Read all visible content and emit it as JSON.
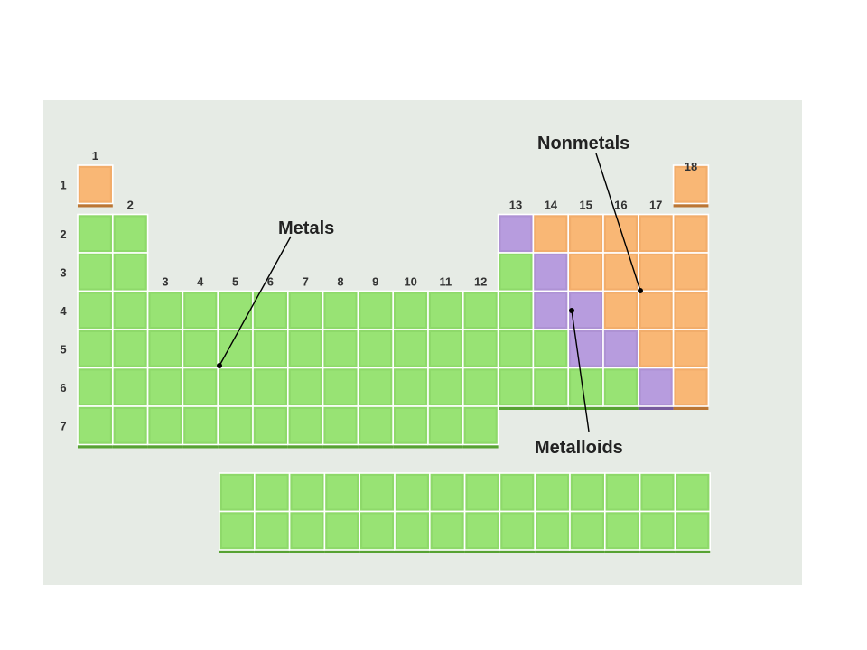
{
  "labels": {
    "metals": "Metals",
    "nonmetals": "Nonmetals",
    "metalloids": "Metalloids"
  },
  "colors": {
    "metal": "#8ed96a",
    "nonmetal": "#f2ad6b",
    "metalloid": "#ae92d4",
    "background": "#e6ebe5"
  },
  "group_labels": [
    "1",
    "2",
    "3",
    "4",
    "5",
    "6",
    "7",
    "8",
    "9",
    "10",
    "11",
    "12",
    "13",
    "14",
    "15",
    "16",
    "17",
    "18"
  ],
  "period_labels": [
    "1",
    "2",
    "3",
    "4",
    "5",
    "6",
    "7"
  ],
  "table": {
    "rows": [
      [
        "N",
        "",
        "",
        "",
        "",
        "",
        "",
        "",
        "",
        "",
        "",
        "",
        "",
        "",
        "",
        "",
        "",
        "N"
      ],
      [
        "M",
        "M",
        "",
        "",
        "",
        "",
        "",
        "",
        "",
        "",
        "",
        "",
        "S",
        "N",
        "N",
        "N",
        "N",
        "N"
      ],
      [
        "M",
        "M",
        "",
        "",
        "",
        "",
        "",
        "",
        "",
        "",
        "",
        "",
        "M",
        "S",
        "N",
        "N",
        "N",
        "N"
      ],
      [
        "M",
        "M",
        "M",
        "M",
        "M",
        "M",
        "M",
        "M",
        "M",
        "M",
        "M",
        "M",
        "M",
        "S",
        "S",
        "N",
        "N",
        "N"
      ],
      [
        "M",
        "M",
        "M",
        "M",
        "M",
        "M",
        "M",
        "M",
        "M",
        "M",
        "M",
        "M",
        "M",
        "M",
        "S",
        "S",
        "N",
        "N"
      ],
      [
        "M",
        "M",
        "M",
        "M",
        "M",
        "M",
        "M",
        "M",
        "M",
        "M",
        "M",
        "M",
        "M",
        "M",
        "M",
        "M",
        "S",
        "N"
      ],
      [
        "M",
        "M",
        "M",
        "M",
        "M",
        "M",
        "M",
        "M",
        "M",
        "M",
        "M",
        "M",
        "",
        "",
        "",
        "",
        "",
        ""
      ]
    ],
    "lower_block_rows": 2,
    "lower_block_cols": 14
  }
}
